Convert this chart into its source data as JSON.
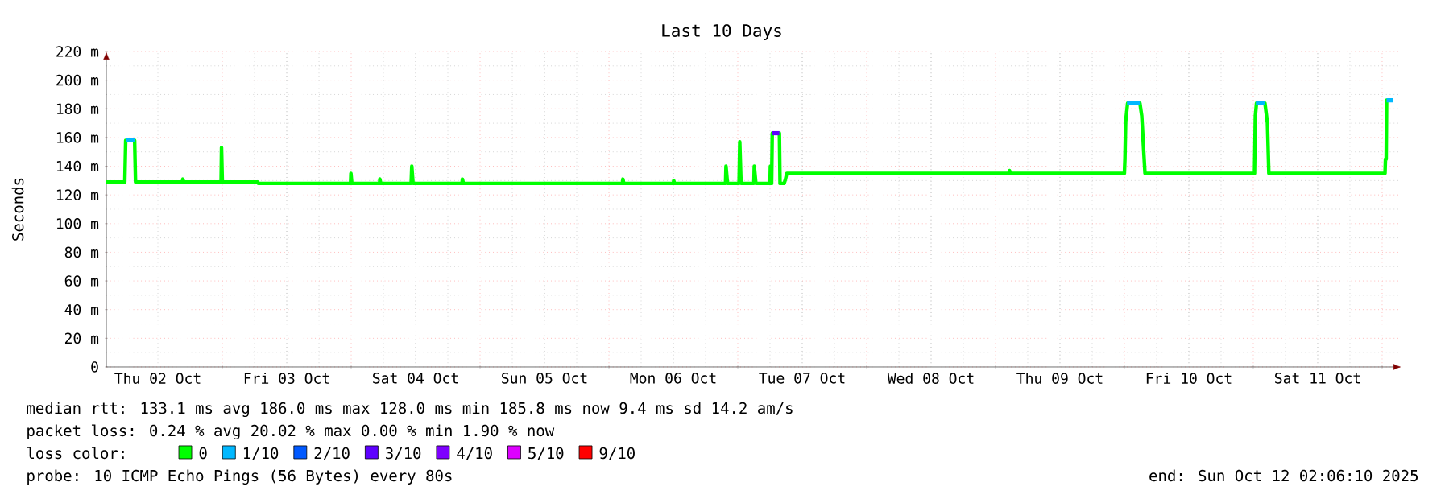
{
  "chart_data": {
    "type": "line",
    "title": "Last 10 Days",
    "ylabel": "Seconds",
    "legend_title": "loss color:",
    "legend": "bottom",
    "grid": true,
    "marker": "none",
    "line_style": "solid",
    "xlim": [
      "2025-10-02T02:24",
      "2025-10-12T03:36"
    ],
    "ylim": [
      0,
      220
    ],
    "xticks": [
      {
        "value": "2025-10-02T12:00",
        "label": "Thu 02 Oct"
      },
      {
        "value": "2025-10-03",
        "label": null
      },
      {
        "value": "2025-10-03T12:00",
        "label": "Fri 03 Oct"
      },
      {
        "value": "2025-10-04",
        "label": null
      },
      {
        "value": "2025-10-04T12:00",
        "label": "Sat 04 Oct"
      },
      {
        "value": "2025-10-05",
        "label": null
      },
      {
        "value": "2025-10-05T12:00",
        "label": "Sun 05 Oct"
      },
      {
        "value": "2025-10-06",
        "label": null
      },
      {
        "value": "2025-10-06T12:00",
        "label": "Mon 06 Oct"
      },
      {
        "value": "2025-10-07",
        "label": null
      },
      {
        "value": "2025-10-07T12:00",
        "label": "Tue 07 Oct"
      },
      {
        "value": "2025-10-08",
        "label": null
      },
      {
        "value": "2025-10-08T12:00",
        "label": "Wed 08 Oct"
      },
      {
        "value": "2025-10-09",
        "label": null
      },
      {
        "value": "2025-10-09T12:00",
        "label": "Thu 09 Oct"
      },
      {
        "value": "2025-10-10",
        "label": null
      },
      {
        "value": "2025-10-10T12:00",
        "label": "Fri 10 Oct"
      },
      {
        "value": "2025-10-11",
        "label": null
      },
      {
        "value": "2025-10-11T12:00",
        "label": "Sat 11 Oct"
      },
      {
        "value": "2025-10-12",
        "label": null
      }
    ],
    "yticks": [
      0,
      {
        "value": 20,
        "label": "20 m"
      },
      {
        "value": 40,
        "label": "40 m"
      },
      {
        "value": 60,
        "label": "60 m"
      },
      {
        "value": 80,
        "label": "80 m"
      },
      {
        "value": 100,
        "label": "100 m"
      },
      {
        "value": 120,
        "label": "120 m"
      },
      {
        "value": 140,
        "label": "140 m"
      },
      {
        "value": 160,
        "label": "160 m"
      },
      {
        "value": 180,
        "label": "180 m"
      },
      {
        "value": 200,
        "label": "200 m"
      },
      {
        "value": 220,
        "label": "220 m"
      }
    ],
    "series": [
      {
        "name": "0",
        "color": "#00ff00",
        "x": [
          "2025-10-02T02:24",
          "2025-10-02T05:50",
          "2025-10-02T06:00",
          "2025-10-02T07:40",
          "2025-10-02T07:50",
          "2025-10-02T16:34",
          "2025-10-02T16:39",
          "2025-10-02T16:48",
          "2025-10-02T23:46",
          "2025-10-02T23:51",
          "2025-10-03T00:00",
          "2025-10-03T06:36",
          "2025-10-03T06:43",
          "2025-10-03T23:53",
          "2025-10-03T23:57",
          "2025-10-04T00:07",
          "2025-10-04T05:17",
          "2025-10-04T05:20",
          "2025-10-04T05:31",
          "2025-10-04T11:10",
          "2025-10-04T11:17",
          "2025-10-04T11:31",
          "2025-10-04T20:38",
          "2025-10-04T20:43",
          "2025-10-04T20:53",
          "2025-10-06T02:31",
          "2025-10-06T02:36",
          "2025-10-06T02:46",
          "2025-10-06T12:00",
          "2025-10-06T12:04",
          "2025-10-06T12:14",
          "2025-10-06T21:43",
          "2025-10-06T21:48",
          "2025-10-06T22:05",
          "2025-10-07T00:14",
          "2025-10-07T00:22",
          "2025-10-07T00:36",
          "2025-10-07T03:00",
          "2025-10-07T03:04",
          "2025-10-07T03:22",
          "2025-10-07T06:00",
          "2025-10-07T06:04",
          "2025-10-07T06:14",
          "2025-10-07T06:18",
          "2025-10-07T06:25",
          "2025-10-07T07:45",
          "2025-10-07T07:52",
          "2025-10-07T08:38",
          "2025-10-07T08:53",
          "2025-10-07T09:07",
          "2025-10-09T02:31",
          "2025-10-09T02:36",
          "2025-10-09T02:46",
          "2025-10-10T00:00",
          "2025-10-10T00:06",
          "2025-10-10T00:14",
          "2025-10-10T00:36",
          "2025-10-10T02:53",
          "2025-10-10T03:14",
          "2025-10-10T03:36",
          "2025-10-10T03:50",
          "2025-10-11T00:14",
          "2025-10-11T00:23",
          "2025-10-11T00:36",
          "2025-10-11T02:10",
          "2025-10-11T02:38",
          "2025-10-11T02:54",
          "2025-10-12T00:32",
          "2025-10-12T00:37",
          "2025-10-12T00:45",
          "2025-10-12T00:50",
          "2025-10-12T02:05"
        ],
        "values": [
          129,
          129,
          158,
          158,
          129,
          129,
          131,
          129,
          129,
          153,
          129,
          129,
          128,
          128,
          135,
          128,
          128,
          131,
          128,
          128,
          140,
          128,
          128,
          131,
          128,
          128,
          131,
          128,
          128,
          130,
          128,
          128,
          140,
          128,
          128,
          157,
          128,
          128,
          140,
          128,
          128,
          140,
          128,
          128,
          163,
          163,
          128,
          128,
          131,
          135,
          135,
          137,
          135,
          135,
          145,
          171,
          184,
          184,
          175,
          150,
          135,
          135,
          175,
          184,
          184,
          170,
          135,
          135,
          145,
          145,
          186,
          186
        ]
      },
      {
        "name": "1/10",
        "color": "#00b8ff",
        "x": [
          "2025-10-02T06:00",
          "2025-10-02T07:40",
          "2025-10-02T07:50",
          "2025-10-10T00:29",
          "2025-10-10T02:53",
          "2025-10-10T03:07",
          "2025-10-11T00:29",
          "2025-10-11T02:10",
          "2025-10-11T02:24",
          "2025-10-12T00:50",
          "2025-10-12T02:05"
        ],
        "values": [
          158,
          158,
          null,
          184,
          184,
          null,
          184,
          184,
          null,
          186,
          186
        ]
      },
      {
        "name": "2/10",
        "color": "#0059ff"
      },
      {
        "name": "3/10",
        "color": "#5e00ff",
        "x": [
          "2025-10-07T06:25",
          "2025-10-07T07:45"
        ],
        "values": [
          163,
          163
        ]
      },
      {
        "name": "4/10",
        "color": "#7e00ff"
      },
      {
        "name": "5/10",
        "color": "#dd00ff"
      },
      {
        "name": "9/10",
        "color": "#ff0000"
      }
    ],
    "annotations": [
      "median rtt: 133.1 ms avg 186.0 ms max 128.0 ms min 185.8 ms now 9.4 ms sd 14.2 am/s",
      "packet loss: 0.24 % avg 20.02 % max 0.00 % min 1.90 % now",
      "probe: 10 ICMP Echo Pings (56 Bytes) every 80s",
      "end: Sun Oct 12 02:06:10 2025"
    ]
  }
}
